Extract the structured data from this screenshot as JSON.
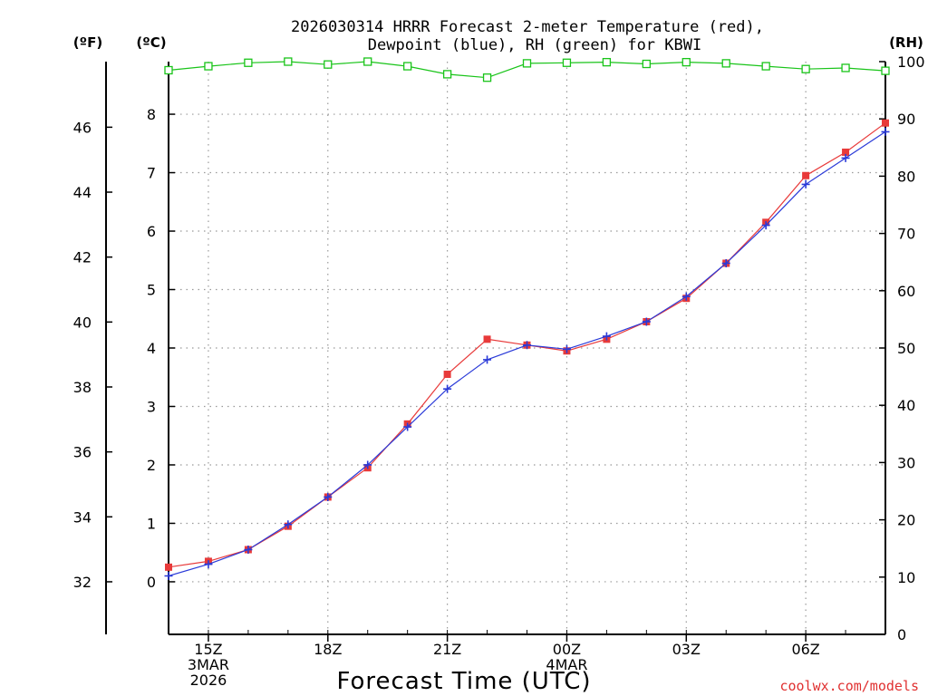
{
  "chart_data": {
    "type": "line",
    "title": "2026030314 HRRR Forecast 2-meter Temperature (red),",
    "subtitle": "Dewpoint (blue), RH (green) for KBWI",
    "xlabel": "Forecast Time (UTC)",
    "left_outer_unit": "(ºF)",
    "left_inner_unit": "(ºC)",
    "right_unit": "(RH)",
    "credit": "coolwx.com/models",
    "x_tick_labels": [
      {
        "hour": 1,
        "lines": [
          "15Z",
          "3MAR",
          "2026"
        ]
      },
      {
        "hour": 4,
        "lines": [
          "18Z"
        ]
      },
      {
        "hour": 7,
        "lines": [
          "21Z"
        ]
      },
      {
        "hour": 10,
        "lines": [
          "00Z",
          "4MAR"
        ]
      },
      {
        "hour": 13,
        "lines": [
          "03Z"
        ]
      },
      {
        "hour": 16,
        "lines": [
          "06Z"
        ]
      }
    ],
    "celsius_ticks": [
      0,
      1,
      2,
      3,
      4,
      5,
      6,
      7,
      8
    ],
    "fahrenheit_ticks": [
      32,
      34,
      36,
      38,
      40,
      42,
      44,
      46
    ],
    "rh_ticks": [
      0,
      10,
      20,
      30,
      40,
      50,
      60,
      70,
      80,
      90,
      100
    ],
    "xlim": [
      0,
      18
    ],
    "ylim_celsius": [
      -0.9,
      8.9
    ],
    "ylim_rh": [
      0,
      100
    ],
    "series": [
      {
        "name": "Temperature",
        "axis": "celsius",
        "color": "#e83a3a",
        "marker": "square",
        "values": [
          0.25,
          0.35,
          0.55,
          0.95,
          1.45,
          1.95,
          2.7,
          3.55,
          4.15,
          4.05,
          3.95,
          4.15,
          4.45,
          4.85,
          5.45,
          6.15,
          6.95,
          7.35,
          7.85
        ]
      },
      {
        "name": "Dewpoint",
        "axis": "celsius",
        "color": "#2a3ad8",
        "marker": "plus",
        "values": [
          0.1,
          0.3,
          0.55,
          0.98,
          1.45,
          2.0,
          2.65,
          3.3,
          3.8,
          4.05,
          3.98,
          4.2,
          4.45,
          4.88,
          5.45,
          6.1,
          6.8,
          7.25,
          7.7
        ]
      },
      {
        "name": "RH",
        "axis": "rh",
        "color": "#19c419",
        "marker": "open-square",
        "values": [
          98.5,
          99.2,
          99.8,
          100,
          99.5,
          100,
          99.2,
          97.8,
          97.2,
          99.7,
          99.8,
          99.9,
          99.6,
          99.9,
          99.7,
          99.2,
          98.7,
          98.9,
          98.4
        ]
      }
    ]
  }
}
